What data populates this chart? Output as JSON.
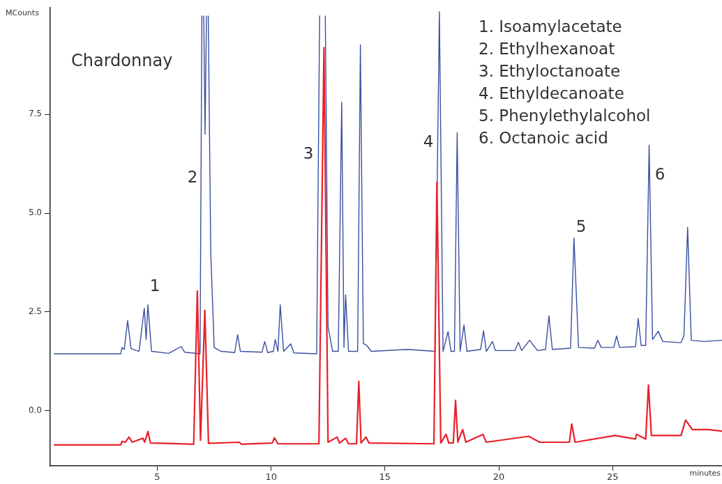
{
  "chart_data": {
    "type": "line",
    "title": "Chardonnay",
    "xlabel": "minutes",
    "ylabel": "MCounts",
    "xlim": [
      0.3,
      29.8
    ],
    "xticks": [
      5,
      10,
      15,
      20,
      25
    ],
    "ylim": [
      -1.4,
      10.2
    ],
    "yticks": [
      {
        "value": 0,
        "label": "0.0"
      },
      2.5,
      {
        "value": 5,
        "label": "5.0"
      },
      7.5
    ],
    "grid": false,
    "legend": false,
    "marker": "none",
    "line_style": "solid",
    "annotations": [
      "1. Isoamylacetate",
      "2. Ethylhexanoat",
      "3. Ethyloctanoate",
      "4. Ethyldecanoate",
      "5. Phenylethylalcohol",
      "6. Octanoic acid",
      "1",
      "2",
      "3",
      "4",
      "5",
      "6"
    ],
    "series": [
      {
        "color": "#3a4fa0",
        "x": [
          0.46,
          3.4,
          3.45,
          3.55,
          3.7,
          3.85,
          4.2,
          4.43,
          4.51,
          4.59,
          4.75,
          5.5,
          6.05,
          6.2,
          6.88,
          6.96,
          6.98,
          7.04,
          7.1,
          7.16,
          7.2,
          7.24,
          7.35,
          7.5,
          7.8,
          8.4,
          8.53,
          8.65,
          9.6,
          9.72,
          9.85,
          10.1,
          10.18,
          10.3,
          10.4,
          10.55,
          10.86,
          11.0,
          12.0,
          12.13,
          12.15,
          12.35,
          12.38,
          12.5,
          12.7,
          12.95,
          13.1,
          13.2,
          13.27,
          13.4,
          13.8,
          13.92,
          14.05,
          14.2,
          14.4,
          16.0,
          17.2,
          17.39,
          17.55,
          17.77,
          17.9,
          18.05,
          18.17,
          18.3,
          18.47,
          18.6,
          19.2,
          19.33,
          19.45,
          19.72,
          19.85,
          20.7,
          20.86,
          21.0,
          21.35,
          21.7,
          22.05,
          22.2,
          22.35,
          23.15,
          23.3,
          23.5,
          24.2,
          24.34,
          24.5,
          25.05,
          25.17,
          25.3,
          26.0,
          26.12,
          26.25,
          26.45,
          26.6,
          26.75,
          27.0,
          27.2,
          28.0,
          28.13,
          28.29,
          28.45,
          29.0,
          29.8
        ],
        "values": [
          1.44,
          1.44,
          1.6,
          1.55,
          2.28,
          1.57,
          1.5,
          2.59,
          1.8,
          2.68,
          1.5,
          1.45,
          1.62,
          1.48,
          1.44,
          10.0,
          null,
          10.0,
          7,
          10.0,
          null,
          10.0,
          4,
          1.6,
          1.5,
          1.47,
          1.92,
          1.5,
          1.48,
          1.75,
          1.47,
          1.5,
          1.8,
          1.5,
          2.68,
          1.5,
          1.69,
          1.46,
          1.44,
          10.0,
          null,
          null,
          10.0,
          2.13,
          1.5,
          1.5,
          7.81,
          1.6,
          2.93,
          1.5,
          1.5,
          9.26,
          1.7,
          1.65,
          1.5,
          1.55,
          1.5,
          10.1,
          1.5,
          2.0,
          1.5,
          1.5,
          7.04,
          1.5,
          2.17,
          1.5,
          1.55,
          2.02,
          1.5,
          1.75,
          1.52,
          1.52,
          1.73,
          1.52,
          1.78,
          1.52,
          1.55,
          2.4,
          1.55,
          1.58,
          4.37,
          1.6,
          1.58,
          1.78,
          1.6,
          1.6,
          1.89,
          1.6,
          1.62,
          2.33,
          1.65,
          1.65,
          6.72,
          1.8,
          2.01,
          1.75,
          1.72,
          1.9,
          4.64,
          1.78,
          1.75,
          1.78
        ]
      },
      {
        "color": "#e8202a",
        "x": [
          0.46,
          3.4,
          3.45,
          3.6,
          3.76,
          3.9,
          4.37,
          4.45,
          4.59,
          4.7,
          6.6,
          6.76,
          6.9,
          7.09,
          7.25,
          8.6,
          8.7,
          10.05,
          10.15,
          10.3,
          12.1,
          12.32,
          12.5,
          12.9,
          13.0,
          13.27,
          13.4,
          13.75,
          13.85,
          13.95,
          14.16,
          14.3,
          17.15,
          17.28,
          17.45,
          17.68,
          17.8,
          18.0,
          18.1,
          18.2,
          18.41,
          18.55,
          19.3,
          19.45,
          21.31,
          21.8,
          23.1,
          23.2,
          23.35,
          25.1,
          26.0,
          26.05,
          26.45,
          26.57,
          26.7,
          28.0,
          28.2,
          28.5,
          29.2,
          29.8
        ],
        "values": [
          -0.87,
          -0.87,
          -0.78,
          -0.8,
          -0.67,
          -0.8,
          -0.7,
          -0.8,
          -0.53,
          -0.82,
          -0.85,
          3.03,
          -0.75,
          2.54,
          -0.83,
          -0.8,
          -0.85,
          -0.82,
          -0.69,
          -0.84,
          -0.84,
          9.19,
          -0.8,
          -0.67,
          -0.82,
          -0.7,
          -0.84,
          -0.84,
          0.74,
          -0.82,
          -0.67,
          -0.82,
          -0.84,
          5.78,
          -0.82,
          -0.6,
          -0.82,
          -0.82,
          0.26,
          -0.8,
          -0.48,
          -0.8,
          -0.6,
          -0.8,
          -0.65,
          -0.8,
          -0.8,
          -0.34,
          -0.8,
          -0.63,
          -0.72,
          -0.6,
          -0.72,
          0.65,
          -0.63,
          -0.63,
          -0.24,
          -0.48,
          -0.48,
          -0.52
        ]
      }
    ]
  }
}
